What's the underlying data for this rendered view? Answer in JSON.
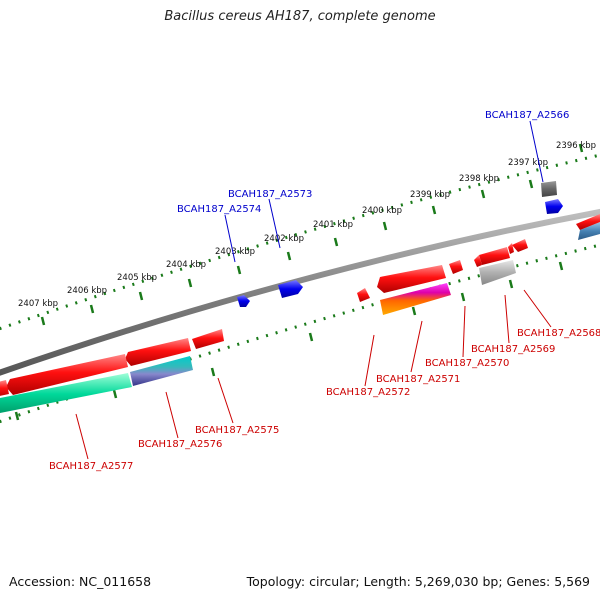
{
  "title": "Bacillus cereus AH187, complete genome",
  "footer": {
    "accession": "Accession: NC_011658",
    "genome_info": "Topology: circular; Length: 5,269,030 bp; Genes: 5,569"
  },
  "scale": {
    "ticks": [
      "2396 kbp",
      "2397 kbp",
      "2398 kbp",
      "2399 kbp",
      "2400 kbp",
      "2401 kbp",
      "2402 kbp",
      "2403 kbp",
      "2404 kbp",
      "2405 kbp",
      "2406 kbp",
      "2407 kbp"
    ]
  },
  "genes": {
    "forward": [
      "BCAH187_A2566",
      "BCAH187_A2573",
      "BCAH187_A2574"
    ],
    "reverse": [
      "BCAH187_A2568",
      "BCAH187_A2569",
      "BCAH187_A2570",
      "BCAH187_A2571",
      "BCAH187_A2572",
      "BCAH187_A2575",
      "BCAH187_A2576",
      "BCAH187_A2577"
    ]
  },
  "colors": {
    "backbone": "#808080",
    "forward_label": "#0000cc",
    "reverse_label": "#cc0000",
    "tick": "#1a7a1a",
    "gene_red": "#ee0000",
    "gene_blue": "#0000ee",
    "gene_teal": "#00cc99",
    "gene_magenta": "#cc00cc",
    "gene_grey": "#aaaaaa",
    "gene_steel": "#4682b4"
  }
}
